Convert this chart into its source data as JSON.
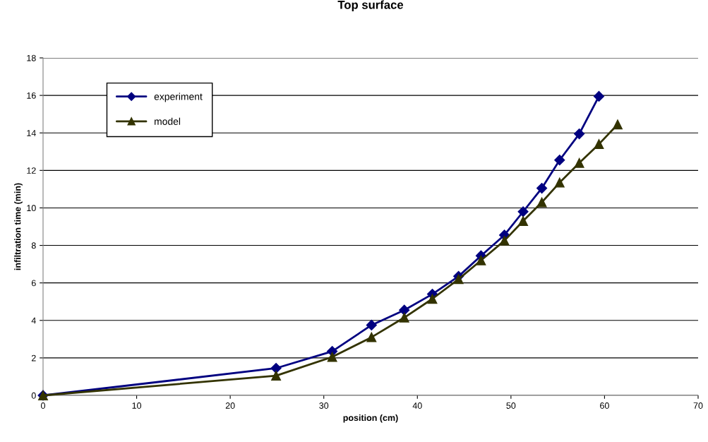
{
  "chart_data": {
    "type": "line",
    "title": "Top surface",
    "xlabel": "position (cm)",
    "ylabel": "infiltration time (min)",
    "xlim": [
      0,
      70
    ],
    "xticks": [
      0,
      10,
      20,
      30,
      40,
      50,
      60,
      70
    ],
    "ylim": [
      0,
      18
    ],
    "yticks": [
      0,
      2,
      4,
      6,
      8,
      10,
      12,
      14,
      16,
      18
    ],
    "grid": "y",
    "legend": "top left",
    "line_style": "solid",
    "series": [
      {
        "name": "experiment",
        "color": "#000080",
        "marker": "diamond",
        "x": [
          0,
          24.9,
          30.9,
          35.1,
          38.6,
          41.6,
          44.4,
          46.8,
          49.3,
          51.3,
          53.3,
          55.2,
          57.3,
          59.4
        ],
        "values": [
          0,
          1.45,
          2.35,
          3.75,
          4.55,
          5.4,
          6.35,
          7.45,
          8.55,
          9.8,
          11.05,
          12.55,
          13.95,
          15.95
        ]
      },
      {
        "name": "model",
        "color": "#333300",
        "marker": "triangle",
        "x": [
          0,
          24.9,
          30.9,
          35.1,
          38.6,
          41.6,
          44.4,
          46.8,
          49.3,
          51.3,
          53.3,
          55.2,
          57.3,
          59.4,
          61.4
        ],
        "values": [
          0,
          1.05,
          2.05,
          3.1,
          4.15,
          5.15,
          6.2,
          7.2,
          8.25,
          9.3,
          10.3,
          11.35,
          12.4,
          13.4,
          14.45
        ]
      }
    ]
  }
}
